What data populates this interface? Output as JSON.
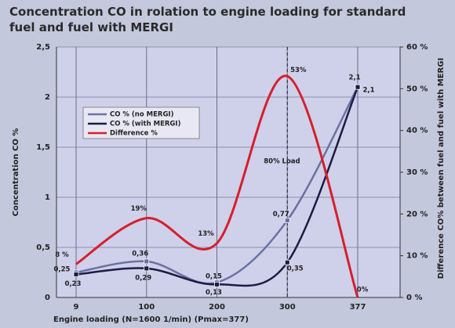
{
  "chart_data": {
    "type": "line",
    "title": "Concentration CO in rolation to engine loading for standard fuel and fuel with MERGI",
    "title_lines": [
      "Concentration CO in rolation to engine loading for standard",
      "fuel and fuel with MERGI"
    ],
    "x_label": "Engine loading (N=1600 1/min) (Pmax=377)",
    "y_label": "Concentration CO %",
    "y2_label": "Difference CO% between fuel and fuel with MERGI",
    "annotation": "80% Load",
    "categories": [
      "9",
      "100",
      "200",
      "300",
      "377"
    ],
    "ylim": [
      0,
      2.5
    ],
    "yticks": [
      0,
      {
        "value": 0.5,
        "label": "0,5"
      },
      1,
      {
        "value": 1.5,
        "label": "1,5"
      },
      2,
      {
        "value": 2.5,
        "label": "2,5"
      }
    ],
    "y2lim": [
      0,
      60
    ],
    "y2ticks": [
      {
        "value": 0,
        "label": "0 %"
      },
      {
        "value": 10,
        "label": "10 %"
      },
      {
        "value": 20,
        "label": "20 %"
      },
      {
        "value": 30,
        "label": "30 %"
      },
      {
        "value": 40,
        "label": "40 %"
      },
      {
        "value": 50,
        "label": "50 %"
      },
      {
        "value": 60,
        "label": "60 %"
      }
    ],
    "grid": true,
    "series": [
      {
        "name": "CO % (no MERGI)",
        "color": "#6b70a3",
        "values": [
          0.25,
          0.36,
          0.15,
          0.77,
          2.1
        ],
        "value_labels": [
          "0,25",
          "0,36",
          "0,15",
          "0,77",
          "2,1"
        ]
      },
      {
        "name": "CO % (with MERGI)",
        "color": "#1c1c44",
        "values": [
          0.23,
          0.29,
          0.13,
          0.35,
          2.1
        ],
        "value_labels": [
          "0,23",
          "0,29",
          "0,13",
          "0,35",
          "2,1"
        ]
      },
      {
        "name": "Difference %",
        "color": "#d61f2b",
        "axis": "y2",
        "values": [
          8,
          19,
          13,
          53,
          0
        ],
        "value_labels": [
          "8 %",
          "19%",
          "13%",
          "53%",
          "0%"
        ]
      }
    ]
  }
}
